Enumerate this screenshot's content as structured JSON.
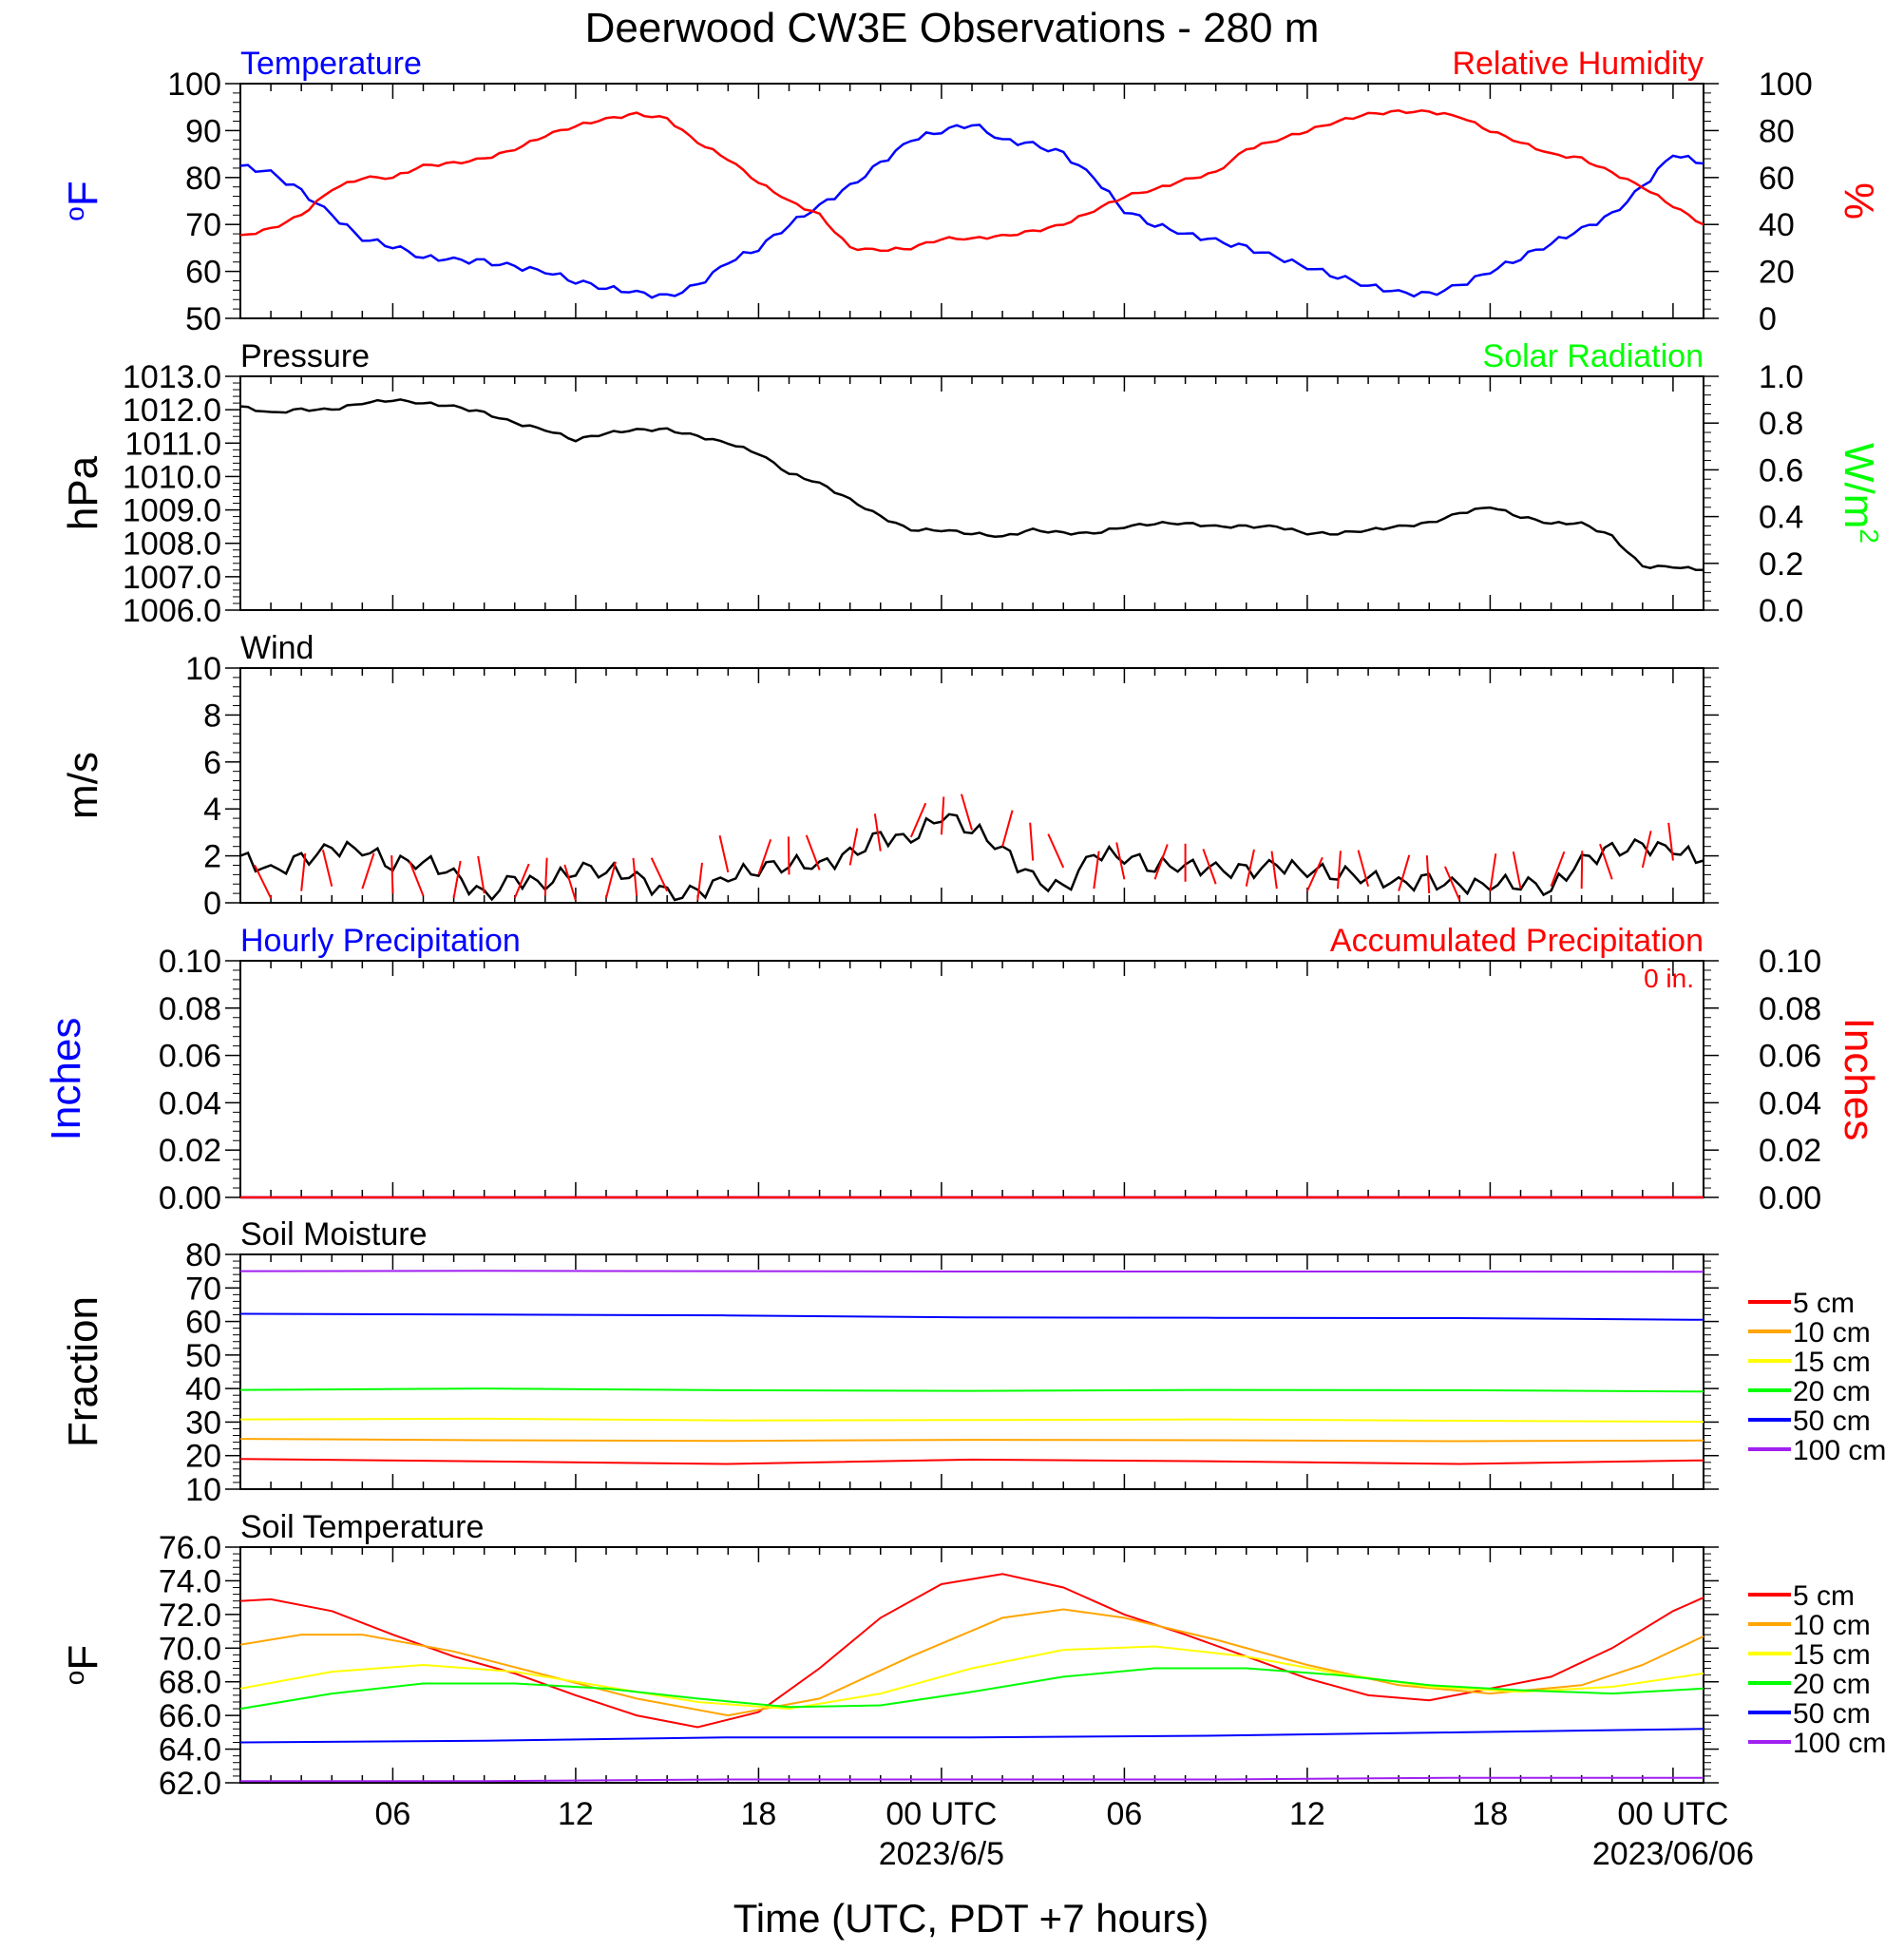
{
  "title": "Deerwood CW3E Observations - 280 m",
  "xlabel": "Time (UTC, PDT +7 hours)",
  "x_ticks": [
    {
      "h": 6,
      "label": "06",
      "date": ""
    },
    {
      "h": 12,
      "label": "12",
      "date": ""
    },
    {
      "h": 18,
      "label": "18",
      "date": ""
    },
    {
      "h": 24,
      "label": "00 UTC",
      "date": "2023/6/5"
    },
    {
      "h": 30,
      "label": "06",
      "date": ""
    },
    {
      "h": 36,
      "label": "12",
      "date": ""
    },
    {
      "h": 42,
      "label": "18",
      "date": ""
    },
    {
      "h": 48,
      "label": "00 UTC",
      "date": "2023/06/06"
    }
  ],
  "colors": {
    "temperature": "#0000ff",
    "humidity": "#ff0000",
    "solar": "#00ff00",
    "black": "#000000",
    "depth_5": "#ff0000",
    "depth_10": "#ffa500",
    "depth_15": "#ffff00",
    "depth_20": "#00ff00",
    "depth_50": "#0000ff",
    "depth_100": "#a020f0"
  },
  "chart_data": [
    {
      "type": "line",
      "left_label": "Temperature",
      "right_label": "Relative Humidity",
      "left_unit_sup": "o",
      "left_unit": "F",
      "right_unit": "%",
      "xlim": [
        1,
        49
      ],
      "ylim_left": [
        50,
        100
      ],
      "ylim_right": [
        0,
        100
      ],
      "left_ticks": [
        "100",
        "90",
        "80",
        "70",
        "60",
        "50"
      ],
      "right_ticks": [
        "100",
        "80",
        "60",
        "40",
        "20",
        "0"
      ],
      "series": [
        {
          "key": "temperature",
          "axis": "left",
          "x": [
            1,
            2,
            3,
            4,
            5,
            6,
            7,
            8,
            9,
            10,
            11,
            12,
            13,
            14,
            15,
            16,
            17,
            18,
            19,
            20,
            21,
            22,
            23,
            24,
            25,
            26,
            27,
            28,
            29,
            30,
            31,
            32,
            33,
            34,
            35,
            36,
            37,
            38,
            39,
            40,
            41,
            42,
            43,
            44,
            45,
            46,
            47,
            48,
            49
          ],
          "y": [
            82.5,
            81,
            77,
            72,
            67,
            65.5,
            63,
            62.5,
            62,
            61,
            60,
            58,
            56.5,
            55.5,
            54.5,
            57,
            62,
            65,
            70,
            74,
            78,
            83,
            88,
            90,
            91.5,
            88,
            87,
            85,
            80,
            73,
            70,
            68,
            66.5,
            65,
            63,
            61,
            59,
            57,
            55.5,
            55,
            57,
            60,
            63,
            66,
            69,
            72,
            78,
            85,
            83
          ]
        },
        {
          "key": "humidity",
          "axis": "right",
          "x": [
            1,
            2,
            3,
            4,
            5,
            6,
            7,
            8,
            9,
            10,
            11,
            12,
            13,
            14,
            15,
            16,
            17,
            18,
            19,
            20,
            21,
            22,
            23,
            24,
            25,
            26,
            27,
            28,
            29,
            30,
            31,
            32,
            33,
            34,
            35,
            36,
            37,
            38,
            39,
            40,
            41,
            42,
            43,
            44,
            45,
            46,
            47,
            48,
            49
          ],
          "y": [
            35,
            38,
            44,
            55,
            60,
            60,
            65,
            66,
            68,
            72,
            78,
            82,
            85,
            87,
            85,
            75,
            68,
            58,
            50,
            44,
            30,
            29,
            30,
            34,
            34,
            35,
            37,
            40,
            46,
            52,
            55,
            59,
            62,
            72,
            76,
            80,
            84,
            87,
            88,
            88,
            86,
            80,
            75,
            70,
            68,
            62,
            56,
            48,
            40
          ]
        }
      ]
    },
    {
      "type": "line",
      "left_label": "Pressure",
      "right_label": "Solar Radiation",
      "left_unit": "hPa",
      "right_unit": "W/m",
      "right_unit_sup": "2",
      "xlim": [
        1,
        49
      ],
      "ylim_left": [
        1006,
        1013
      ],
      "ylim_right": [
        0,
        1
      ],
      "left_ticks": [
        "1013.0",
        "1012.0",
        "1011.0",
        "1010.0",
        "1009.0",
        "1008.0",
        "1007.0",
        "1006.0"
      ],
      "right_ticks": [
        "1.0",
        "0.8",
        "0.6",
        "0.4",
        "0.2",
        "0.0"
      ],
      "series": [
        {
          "key": "black",
          "axis": "left",
          "x": [
            1,
            2,
            3,
            4,
            5,
            6,
            7,
            8,
            9,
            10,
            11,
            12,
            13,
            14,
            15,
            16,
            17,
            18,
            19,
            20,
            21,
            22,
            23,
            24,
            25,
            26,
            27,
            28,
            29,
            30,
            31,
            32,
            33,
            34,
            35,
            36,
            37,
            38,
            39,
            40,
            41,
            42,
            43,
            44,
            45,
            46,
            47,
            48,
            49
          ],
          "y": [
            1012.1,
            1011.9,
            1012.0,
            1012.0,
            1012.2,
            1012.3,
            1012.2,
            1012.1,
            1011.9,
            1011.6,
            1011.4,
            1011.1,
            1011.3,
            1011.4,
            1011.4,
            1011.2,
            1011.0,
            1010.7,
            1010.1,
            1009.8,
            1009.3,
            1008.8,
            1008.4,
            1008.4,
            1008.3,
            1008.2,
            1008.4,
            1008.3,
            1008.3,
            1008.5,
            1008.6,
            1008.6,
            1008.5,
            1008.5,
            1008.5,
            1008.3,
            1008.3,
            1008.4,
            1008.5,
            1008.6,
            1008.9,
            1009.1,
            1008.8,
            1008.6,
            1008.6,
            1008.2,
            1007.3,
            1007.3,
            1007.2
          ]
        }
      ]
    },
    {
      "type": "line",
      "left_label": "Wind",
      "left_unit": "m/s",
      "xlim": [
        1,
        49
      ],
      "ylim_left": [
        0,
        10
      ],
      "left_ticks": [
        "10",
        "8",
        "6",
        "4",
        "2",
        "0"
      ],
      "series": [
        {
          "key": "black",
          "axis": "left",
          "x": [
            1,
            2,
            3,
            4,
            5,
            6,
            7,
            8,
            9,
            10,
            11,
            12,
            13,
            14,
            15,
            16,
            17,
            18,
            19,
            20,
            21,
            22,
            23,
            24,
            25,
            26,
            27,
            28,
            29,
            30,
            31,
            32,
            33,
            34,
            35,
            36,
            37,
            38,
            39,
            40,
            41,
            42,
            43,
            44,
            45,
            46,
            47,
            48,
            49
          ],
          "y": [
            2.0,
            1.3,
            1.8,
            2.3,
            2.3,
            1.7,
            1.8,
            1.2,
            0.2,
            1.0,
            0.8,
            1.5,
            1.4,
            1.1,
            0.3,
            0.4,
            1.1,
            1.5,
            1.7,
            1.6,
            2.0,
            2.8,
            2.7,
            3.8,
            3.2,
            2.3,
            1.0,
            0.5,
            2.1,
            2.0,
            1.6,
            1.6,
            1.4,
            1.3,
            1.6,
            1.4,
            1.3,
            1.1,
            0.8,
            0.9,
            0.7,
            0.8,
            0.9,
            0.6,
            1.8,
            2.2,
            2.4,
            2.3,
            1.8
          ]
        },
        {
          "key": "humidity",
          "axis": "left",
          "style": "barbs",
          "x": [
            2,
            3,
            4,
            5,
            6,
            7,
            8,
            9,
            10,
            11,
            12,
            13,
            14,
            15,
            16,
            17,
            18,
            19,
            20,
            21,
            22,
            23,
            24,
            25,
            26,
            27,
            28,
            29,
            30,
            31,
            32,
            33,
            34,
            35,
            36,
            37,
            38,
            39,
            40,
            41,
            42,
            43,
            44,
            45,
            46,
            47,
            48
          ],
          "y": [
            0.2,
            0.5,
            0.7,
            0.6,
            0.4,
            0.3,
            0.2,
            0.4,
            0.2,
            0.3,
            0.1,
            0.2,
            0.3,
            0.5,
            0.1,
            1.3,
            1.2,
            1.2,
            1.4,
            1.6,
            2.2,
            2.8,
            2.9,
            3.1,
            2.4,
            1.8,
            1.5,
            0.6,
            1.0,
            1.0,
            0.9,
            0.8,
            0.7,
            0.6,
            0.5,
            0.6,
            0.7,
            0.5,
            0.4,
            0.1,
            0.5,
            0.6,
            0.7,
            0.6,
            1.0,
            1.5,
            1.8
          ]
        }
      ]
    },
    {
      "type": "line",
      "left_label": "Hourly Precipitation",
      "right_label": "Accumulated Precipitation",
      "accum_text": "0 in.",
      "left_unit": "Inches",
      "right_unit": "Inches",
      "xlim": [
        1,
        49
      ],
      "ylim_left": [
        0,
        0.1
      ],
      "ylim_right": [
        0,
        0.1
      ],
      "left_ticks": [
        "0.10",
        "0.08",
        "0.06",
        "0.04",
        "0.02",
        "0.00"
      ],
      "right_ticks": [
        "0.10",
        "0.08",
        "0.06",
        "0.04",
        "0.02",
        "0.00"
      ],
      "series": [
        {
          "key": "temperature",
          "axis": "left",
          "x": [
            1,
            49
          ],
          "y": [
            0,
            0
          ]
        },
        {
          "key": "humidity",
          "axis": "right",
          "x": [
            1,
            49
          ],
          "y": [
            0,
            0
          ]
        }
      ]
    },
    {
      "type": "line",
      "left_label": "Soil Moisture",
      "left_unit": "Fraction",
      "xlim": [
        1,
        49
      ],
      "ylim_left": [
        10,
        80
      ],
      "left_ticks": [
        "80",
        "70",
        "60",
        "50",
        "40",
        "30",
        "20",
        "10"
      ],
      "legend": [
        "5 cm",
        "10 cm",
        "15 cm",
        "20 cm",
        "50 cm",
        "100 cm"
      ],
      "series": [
        {
          "key": "depth_5",
          "axis": "left",
          "x": [
            1,
            9,
            17,
            25,
            33,
            41,
            49
          ],
          "y": [
            19,
            18.3,
            17.5,
            18.8,
            18.3,
            17.5,
            18.6
          ]
        },
        {
          "key": "depth_10",
          "axis": "left",
          "x": [
            1,
            9,
            17,
            25,
            33,
            41,
            49
          ],
          "y": [
            25,
            24.6,
            24.4,
            24.7,
            24.6,
            24.3,
            24.5
          ]
        },
        {
          "key": "depth_15",
          "axis": "left",
          "x": [
            1,
            9,
            17,
            25,
            33,
            41,
            49
          ],
          "y": [
            30.8,
            31.0,
            30.5,
            30.6,
            30.8,
            30.4,
            30.1
          ]
        },
        {
          "key": "depth_20",
          "axis": "left",
          "x": [
            1,
            9,
            17,
            25,
            33,
            41,
            49
          ],
          "y": [
            39.6,
            40.0,
            39.5,
            39.3,
            39.6,
            39.5,
            39.1
          ]
        },
        {
          "key": "depth_50",
          "axis": "left",
          "x": [
            1,
            9,
            17,
            25,
            33,
            41,
            49
          ],
          "y": [
            62.3,
            62.1,
            61.8,
            61.2,
            61.1,
            61.0,
            60.5
          ]
        },
        {
          "key": "depth_100",
          "axis": "left",
          "x": [
            1,
            9,
            17,
            25,
            33,
            41,
            49
          ],
          "y": [
            75.0,
            75.1,
            75.0,
            74.9,
            74.9,
            74.9,
            74.8
          ]
        }
      ]
    },
    {
      "type": "line",
      "left_label": "Soil Temperature",
      "left_unit_sup": "o",
      "left_unit": "F",
      "xlim": [
        1,
        49
      ],
      "ylim_left": [
        62,
        76
      ],
      "left_ticks": [
        "76.0",
        "74.0",
        "72.0",
        "70.0",
        "68.0",
        "66.0",
        "64.0",
        "62.0"
      ],
      "legend": [
        "5 cm",
        "10 cm",
        "15 cm",
        "20 cm",
        "50 cm",
        "100 cm"
      ],
      "series": [
        {
          "key": "depth_5",
          "axis": "left",
          "x": [
            1,
            2,
            4,
            6,
            8,
            10,
            12,
            14,
            16,
            18,
            20,
            22,
            24,
            26,
            28,
            30,
            32,
            34,
            36,
            38,
            40,
            42,
            44,
            46,
            48,
            49
          ],
          "y": [
            72.8,
            72.9,
            72.2,
            70.8,
            69.5,
            68.5,
            67.2,
            66.0,
            65.3,
            66.2,
            68.8,
            71.8,
            73.8,
            74.4,
            73.6,
            72.0,
            70.8,
            69.5,
            68.2,
            67.2,
            66.9,
            67.6,
            68.3,
            70.0,
            72.2,
            73.0
          ]
        },
        {
          "key": "depth_10",
          "axis": "left",
          "x": [
            1,
            3,
            5,
            8,
            11,
            14,
            17,
            20,
            23,
            26,
            28,
            30,
            33,
            36,
            39,
            42,
            45,
            47,
            49
          ],
          "y": [
            70.2,
            70.8,
            70.8,
            69.8,
            68.4,
            67.0,
            66.0,
            67.0,
            69.5,
            71.8,
            72.3,
            71.8,
            70.5,
            69.0,
            67.8,
            67.3,
            67.8,
            69.0,
            70.7
          ]
        },
        {
          "key": "depth_15",
          "axis": "left",
          "x": [
            1,
            4,
            7,
            10,
            13,
            16,
            19,
            22,
            25,
            28,
            31,
            34,
            37,
            40,
            43,
            46,
            49
          ],
          "y": [
            67.6,
            68.6,
            69.0,
            68.6,
            67.7,
            66.8,
            66.4,
            67.3,
            68.8,
            69.9,
            70.1,
            69.5,
            68.5,
            67.7,
            67.4,
            67.7,
            68.5
          ]
        },
        {
          "key": "depth_20",
          "axis": "left",
          "x": [
            1,
            4,
            7,
            10,
            13,
            16,
            19,
            22,
            25,
            28,
            31,
            34,
            37,
            40,
            43,
            46,
            49
          ],
          "y": [
            66.4,
            67.3,
            67.9,
            67.9,
            67.6,
            67.0,
            66.5,
            66.6,
            67.4,
            68.3,
            68.8,
            68.8,
            68.4,
            67.8,
            67.5,
            67.3,
            67.6
          ]
        },
        {
          "key": "depth_50",
          "axis": "left",
          "x": [
            1,
            9,
            17,
            25,
            33,
            41,
            49
          ],
          "y": [
            64.4,
            64.5,
            64.7,
            64.7,
            64.8,
            65.0,
            65.2
          ]
        },
        {
          "key": "depth_100",
          "axis": "left",
          "x": [
            1,
            9,
            17,
            25,
            33,
            41,
            49
          ],
          "y": [
            62.1,
            62.1,
            62.2,
            62.2,
            62.2,
            62.3,
            62.3
          ]
        }
      ]
    }
  ]
}
